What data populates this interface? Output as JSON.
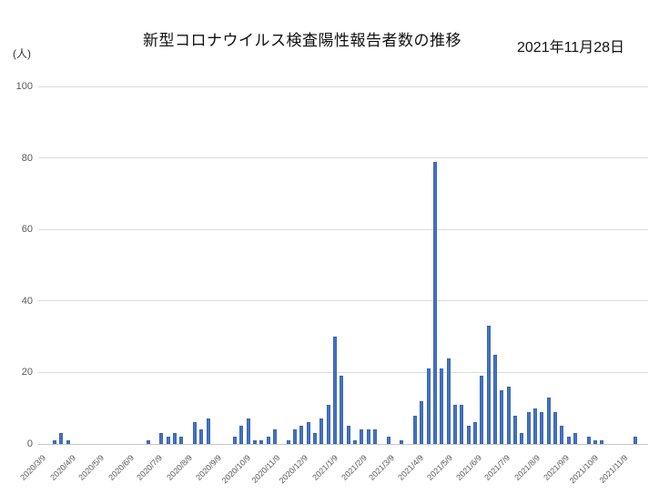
{
  "header": {
    "title": "新型コロナウイルス検査陽性報告者数の推移",
    "report_date": "2021年11月28日"
  },
  "chart_data": {
    "type": "bar",
    "title": "新型コロナウイルス検査陽性報告者数の推移",
    "subtitle": "2021年11月28日",
    "y_axis": {
      "unit_label": "(人)",
      "ticks": [
        0,
        20,
        40,
        60,
        80,
        100
      ],
      "min": 0,
      "max": 100,
      "grid": true
    },
    "x_axis": {
      "tick_labels": [
        "2020/3/9",
        "2020/4/9",
        "2020/5/9",
        "2020/6/9",
        "2020/7/9",
        "2020/8/9",
        "2020/9/9",
        "2020/10/9",
        "2020/11/9",
        "2020/12/9",
        "2021/1/9",
        "2021/2/9",
        "2021/3/9",
        "2021/4/9",
        "2021/5/9",
        "2021/6/9",
        "2021/7/9",
        "2021/8/9",
        "2021/9/9",
        "2021/10/9",
        "2021/11/9"
      ],
      "start_label": "2020/3/9",
      "interval": "weekly"
    },
    "series": [
      {
        "name": "検査陽性報告者数",
        "values": [
          0,
          0,
          1,
          3,
          1,
          0,
          0,
          0,
          0,
          0,
          0,
          0,
          0,
          0,
          0,
          0,
          1,
          0,
          3,
          2,
          3,
          2,
          0,
          6,
          4,
          7,
          0,
          0,
          0,
          2,
          5,
          7,
          1,
          1,
          2,
          4,
          0,
          1,
          4,
          5,
          6,
          3,
          7,
          11,
          30,
          19,
          5,
          1,
          4,
          4,
          4,
          0,
          2,
          0,
          1,
          0,
          8,
          12,
          21,
          79,
          21,
          24,
          11,
          11,
          5,
          6,
          19,
          33,
          25,
          15,
          16,
          8,
          3,
          9,
          10,
          9,
          13,
          9,
          5,
          2,
          3,
          0,
          2,
          1,
          1,
          0,
          0,
          0,
          0,
          2
        ]
      }
    ],
    "bar_color": "#4472C4",
    "legend": "none"
  }
}
